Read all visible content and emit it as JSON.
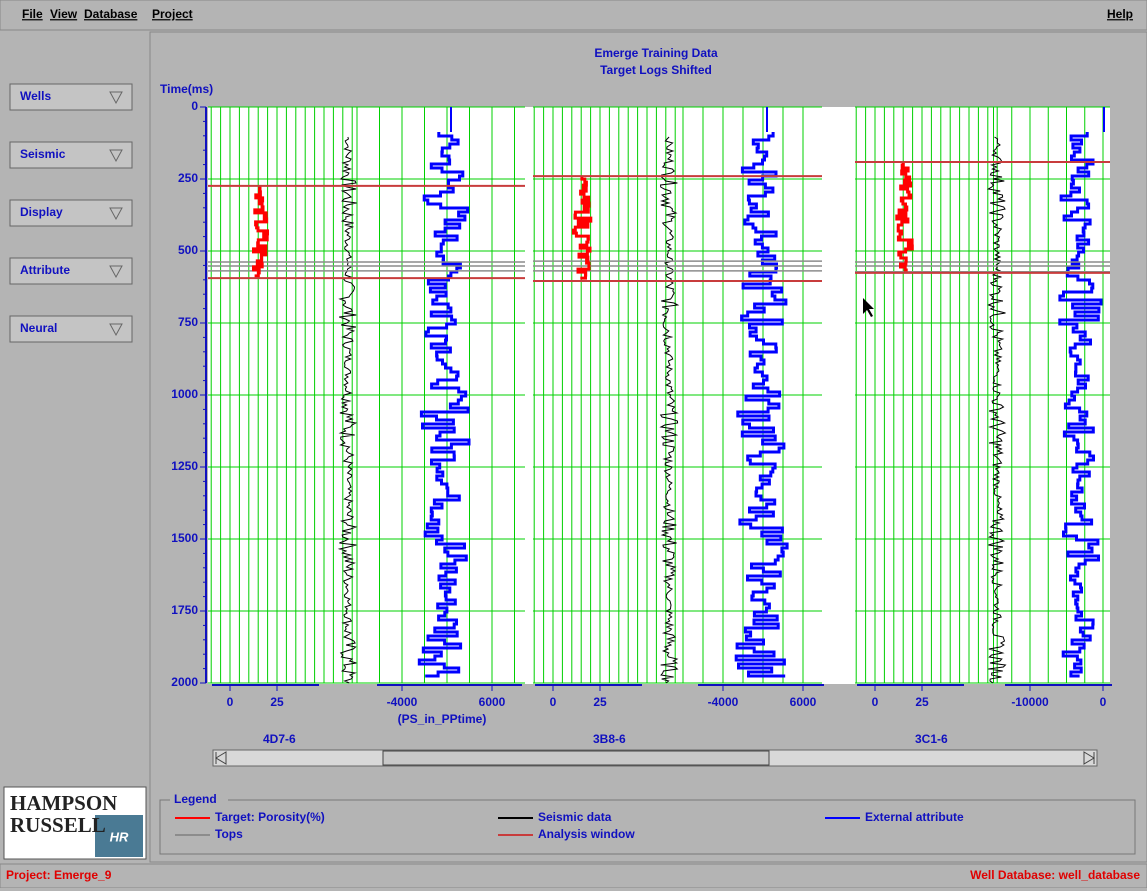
{
  "menu": [
    "File",
    "View",
    "Database",
    "Project"
  ],
  "help": "Help",
  "sidebar": [
    "Wells",
    "Seismic",
    "Display",
    "Attribute",
    "Neural"
  ],
  "chart_data": {
    "type": "well-log",
    "title": "Emerge Training Data",
    "subtitle": "Target Logs Shifted",
    "y_label": "Time(ms)",
    "ylim": [
      0,
      2000
    ],
    "yticks": [
      0,
      250,
      500,
      750,
      1000,
      1250,
      1500,
      1750,
      2000
    ],
    "grid": true,
    "wells": [
      {
        "name": "4D7-6",
        "porosity_ticks": [
          0,
          25
        ],
        "attribute_ticks": [
          -4000,
          6000
        ],
        "attribute_label": "(PS_in_PPtime)",
        "window": [
          274,
          594
        ],
        "tops": [
          538,
          552,
          569
        ]
      },
      {
        "name": "3B8-6",
        "porosity_ticks": [
          0,
          25
        ],
        "attribute_ticks": [
          -4000,
          6000
        ],
        "window": [
          240,
          604
        ],
        "tops": [
          535,
          552,
          569
        ]
      },
      {
        "name": "3C1-6",
        "porosity_ticks": [
          0,
          25
        ],
        "attribute_ticks": [
          -10000,
          0
        ],
        "window": [
          191,
          576
        ],
        "tops": [
          538,
          552,
          572
        ]
      }
    ]
  },
  "legend": {
    "title": "Legend",
    "items": [
      {
        "label": "Target: Porosity(%)",
        "color": "#ff0000"
      },
      {
        "label": "Seismic data",
        "color": "#000000"
      },
      {
        "label": "External attribute",
        "color": "#0000ff"
      },
      {
        "label": "Tops",
        "color": "#8c8c8c"
      },
      {
        "label": "Analysis window",
        "color": "#c83c3c"
      }
    ]
  },
  "logo": [
    "HAMPSON",
    "RUSSELL",
    "HR"
  ],
  "status": {
    "project": "Project: Emerge_9",
    "database": "Well Database: well_database"
  }
}
